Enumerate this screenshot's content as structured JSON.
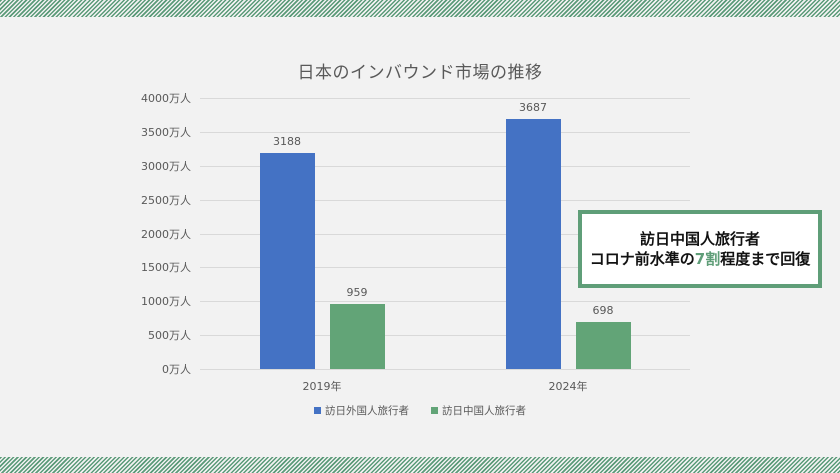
{
  "chart_data": {
    "type": "bar",
    "title": "日本のインバウンド市場の推移",
    "categories": [
      "2019年",
      "2024年"
    ],
    "series": [
      {
        "name": "訪日外国人旅行者",
        "values": [
          3188,
          3687
        ],
        "color": "#4472c4"
      },
      {
        "name": "訪日中国人旅行者",
        "values": [
          959,
          698
        ],
        "color": "#62a477"
      }
    ],
    "xlabel": "",
    "ylabel": "",
    "ylim": [
      0,
      4000
    ],
    "yticks": [
      "0万人",
      "500万人",
      "1000万人",
      "1500万人",
      "2000万人",
      "2500万人",
      "3000万人",
      "3500万人",
      "4000万人"
    ],
    "grid": true,
    "legend_position": "bottom",
    "data_labels": {
      "s0c0": "3188",
      "s0c1": "3687",
      "s1c0": "959",
      "s1c1": "698"
    }
  },
  "callout": {
    "line1": "訪日中国人旅行者",
    "line2_pre": "コロナ前水準の",
    "line2_highlight": "7割",
    "line2_post": "程度まで回復",
    "border_color": "#5f9e78"
  }
}
